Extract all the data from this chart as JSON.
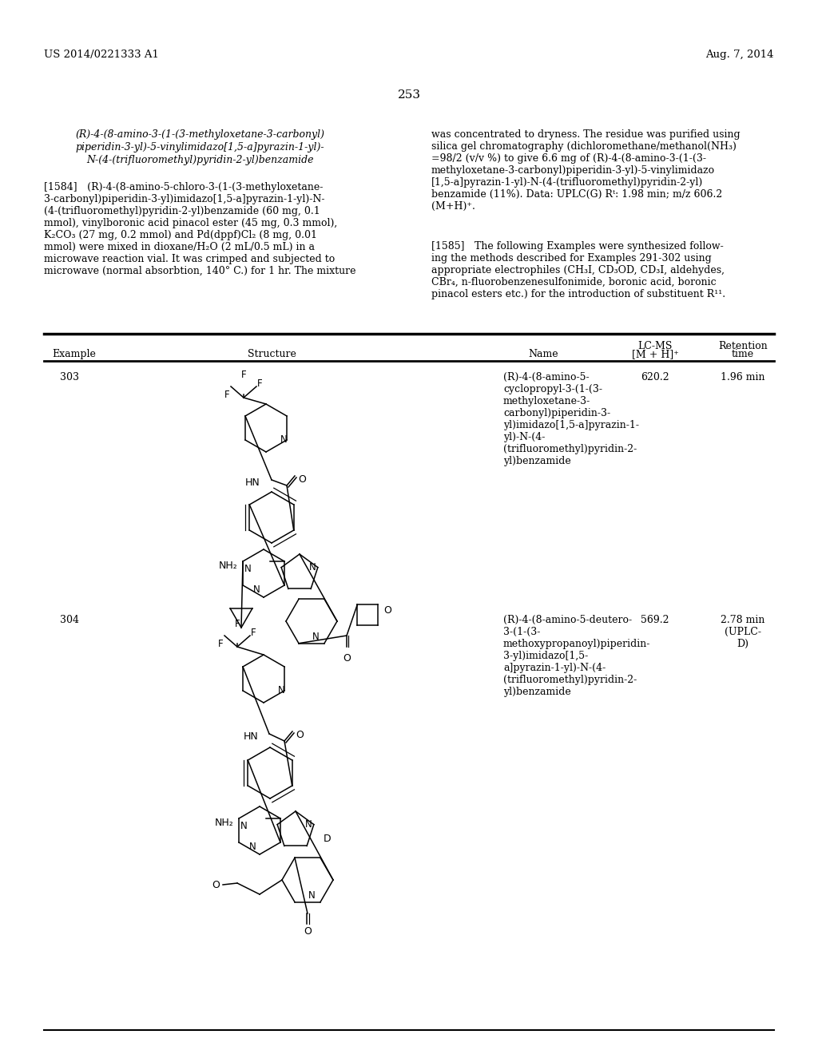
{
  "background_color": "#ffffff",
  "header_left": "US 2014/0221333 A1",
  "header_right": "Aug. 7, 2014",
  "page_number": "253",
  "left_col_italic": [
    "(R)-4-(8-amino-3-(1-(3-methyloxetane-3-carbonyl)",
    "piperidin-3-yl)-5-vinylimidazo[1,5-a]pyrazin-1-yl)-",
    "N-(4-(trifluoromethyl)pyridin-2-yl)benzamide"
  ],
  "right_col_p1": "was concentrated to dryness. The residue was purified using\nsilica gel chromatography (dichloromethane/methanol(NH₃)\n=98/2 (v/v %) to give 6.6 mg of (R)-4-(8-amino-3-(1-(3-\nmethyloxetane-3-carbonyl)piperidin-3-yl)-5-vinylimidazo\n[1,5-a]pyrazin-1-yl)-N-(4-(trifluoromethyl)pyridin-2-yl)\nbenzamide (11%). Data: UPLC(G) Rᵗ: 1.98 min; m/z 606.2\n(M+H)⁺.",
  "left_col_p1584": "[1584] (R)-4-(8-amino-5-chloro-3-(1-(3-methyloxetane-\n3-carbonyl)piperidin-3-yl)imidazo[1,5-a]pyrazin-1-yl)-N-\n(4-(trifluoromethyl)pyridin-2-yl)benzamide (60 mg, 0.1\nmmol), vinylboronic acid pinacol ester (45 mg, 0.3 mmol),\nK₂CO₃ (27 mg, 0.2 mmol) and Pd(dppf)Cl₂ (8 mg, 0.01\nmmol) were mixed in dioxane/H₂O (2 mL/0.5 mL) in a\nmicrowave reaction vial. It was crimped and subjected to\nmicrowave (normal absorbtion, 140° C.) for 1 hr. The mixture",
  "right_col_p1585": "[1585] The following Examples were synthesized follow-\ning the methods described for Examples 291-302 using\nappropriate electrophiles (CH₃I, CD₃OD, CD₃I, aldehydes,\nCBr₄, n-fluorobenzenesulfonimide, boronic acid, boronic\npinacol esters etc.) for the introduction of substituent R¹¹.",
  "table_header_lcms": "LC-MS",
  "table_header_ret": "Retention",
  "table_header_example": "Example",
  "table_header_structure": "Structure",
  "table_header_name": "Name",
  "table_header_mh": "[M + H]⁺",
  "table_header_time": "time",
  "row1_example": "303",
  "row1_name": "(R)-4-(8-amino-5-\ncyclopropyl-3-(1-(3-\nmethyloxetane-3-\ncarbonyl)piperidin-3-\nyl)imidazo[1,5-a]pyrazin-1-\nyl)-N-(4-\n(trifluoromethyl)pyridin-2-\nyl)benzamide",
  "row1_lcms": "620.2",
  "row1_ret": "1.96 min",
  "row2_example": "304",
  "row2_name": "(R)-4-(8-amino-5-deutero-\n3-(1-(3-\nmethoxypropanoyl)piperidin-\n3-yl)imidazo[1,5-\na]pyrazin-1-yl)-N-(4-\n(trifluoromethyl)pyridin-2-\nyl)benzamide",
  "row2_lcms": "569.2",
  "row2_ret": "2.78 min\n(UPLC-\nD)"
}
